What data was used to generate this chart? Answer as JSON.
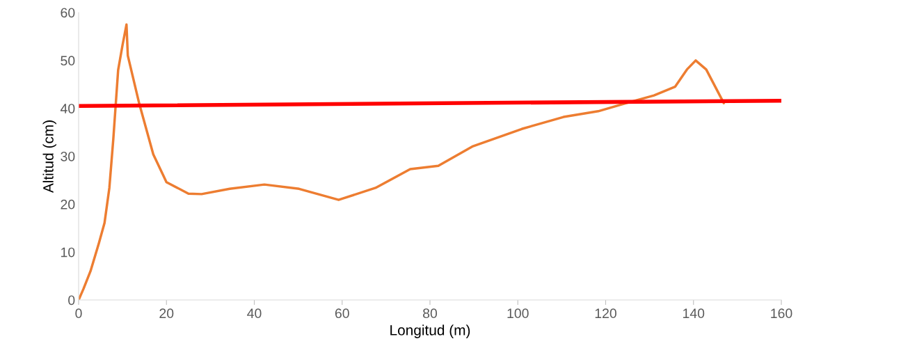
{
  "chart_data": {
    "type": "line",
    "xlabel": "Longitud (m)",
    "ylabel": "Altitud (cm)",
    "xlim": [
      0,
      160
    ],
    "ylim": [
      0,
      60
    ],
    "xticks": [
      0,
      20,
      40,
      60,
      80,
      100,
      120,
      140,
      160
    ],
    "yticks": [
      0,
      10,
      20,
      30,
      40,
      50,
      60
    ],
    "grid": false,
    "legend": false,
    "marker": "none",
    "line_style": "solid",
    "series": [
      {
        "color": "#ed7d31",
        "x": [
          0,
          1.1,
          2.7,
          4.6,
          5.9,
          7,
          7.9,
          9,
          10,
          10.9,
          11.2,
          13.8,
          17,
          20,
          25,
          28,
          34.4,
          42.3,
          50.2,
          59.2,
          67.6,
          75.5,
          81.9,
          89.8,
          100.9,
          110.4,
          118.3,
          124.7,
          131,
          135.8,
          138.5,
          140.5,
          142.9,
          146.9
        ],
        "values": [
          0,
          2.3,
          6,
          11.8,
          16.1,
          23.4,
          33.6,
          48,
          53.2,
          57.5,
          51,
          41,
          30.4,
          24.6,
          22.2,
          22.1,
          23.2,
          24.1,
          23.2,
          20.9,
          23.4,
          27.3,
          28,
          32.1,
          35.7,
          38.2,
          39.4,
          41.1,
          42.7,
          44.5,
          48.1,
          50,
          48.1,
          41.1
        ]
      },
      {
        "color": "#ff0000",
        "x": [
          0,
          160
        ],
        "values": [
          40.5,
          41.6
        ]
      }
    ]
  }
}
